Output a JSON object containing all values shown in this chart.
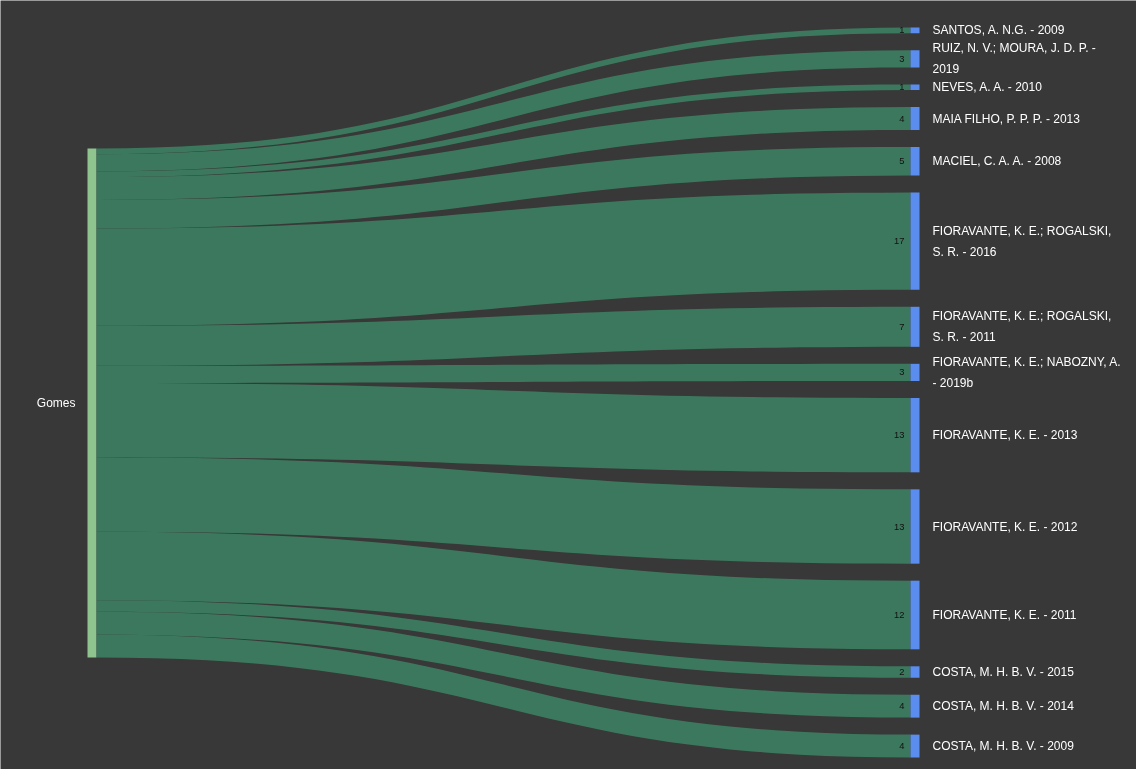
{
  "chart_data": {
    "type": "other",
    "categories": [
      "SANTOS, A. N.G. - 2009",
      "RUIZ, N. V.; MOURA, J. D. P. - 2019",
      "NEVES, A. A. - 2010",
      "MAIA FILHO, P. P. P. - 2013",
      "MACIEL, C. A. A. - 2008",
      "FIORAVANTE, K. E.; ROGALSKI, S. R. - 2016",
      "FIORAVANTE, K. E.; ROGALSKI, S. R. - 2011",
      "FIORAVANTE, K. E.; NABOZNY, A. - 2019b",
      "FIORAVANTE, K. E. - 2013",
      "FIORAVANTE, K. E. - 2012",
      "FIORAVANTE, K. E. - 2011",
      "COSTA, M. H. B. V. - 2015",
      "COSTA, M. H. B. V. - 2014",
      "COSTA, M. H. B. V. - 2009"
    ],
    "series": [
      {
        "name": "Gomes",
        "color": "#3d7f62",
        "values": [
          1,
          3,
          1,
          4,
          5,
          17,
          7,
          3,
          13,
          13,
          12,
          2,
          4,
          4
        ]
      }
    ],
    "data_labels": true
  }
}
